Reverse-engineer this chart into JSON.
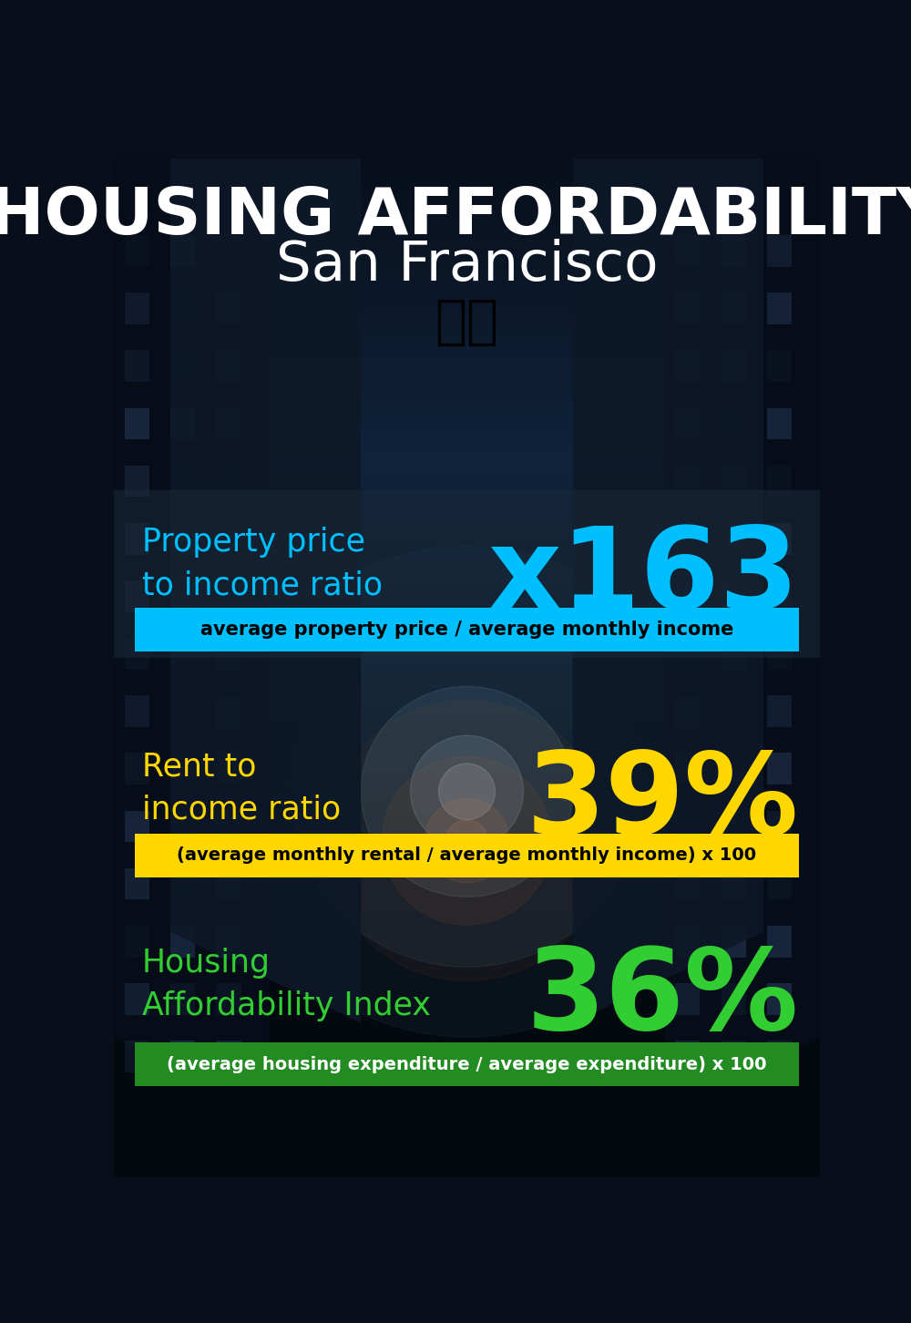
{
  "title_line1": "HOUSING AFFORDABILITY",
  "title_line2": "San Francisco",
  "flag_emoji": "🇺🇸",
  "section1_label": "Property price\nto income ratio",
  "section1_value": "x163",
  "section1_sublabel": "average property price / average monthly income",
  "section1_label_color": "#00BFFF",
  "section1_value_color": "#00BFFF",
  "section1_bg_color": "#00BFFF",
  "section2_label": "Rent to\nincome ratio",
  "section2_value": "39%",
  "section2_sublabel": "(average monthly rental / average monthly income) x 100",
  "section2_label_color": "#FFD700",
  "section2_value_color": "#FFD700",
  "section2_bg_color": "#FFD700",
  "section3_label": "Housing\nAffordability Index",
  "section3_value": "36%",
  "section3_sublabel": "(average housing expenditure / average expenditure) x 100",
  "section3_label_color": "#32CD32",
  "section3_value_color": "#32CD32",
  "section3_bg_color": "#228B22",
  "title_color": "#FFFFFF",
  "bg_color": "#080e1a",
  "panel_color": "#1a2a3a",
  "panel_alpha": 0.55
}
